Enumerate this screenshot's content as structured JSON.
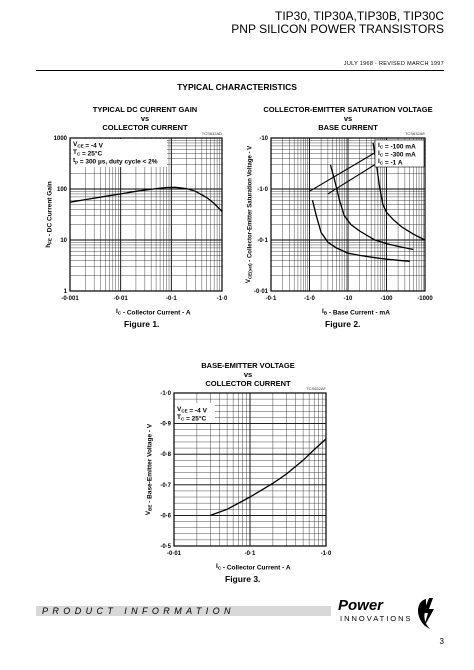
{
  "header": {
    "title_line1": "TIP30, TIP30A,TIP30B, TIP30C",
    "title_line2": "PNP SILICON POWER TRANSISTORS",
    "date": "JULY 1968 - REVISED MARCH 1997"
  },
  "section_title": "TYPICAL CHARACTERISTICS",
  "figures": [
    {
      "title_lines": [
        "TYPICAL DC CURRENT GAIN",
        "vs",
        "COLLECTOR CURRENT"
      ],
      "code": "TCS632AD",
      "caption": "Figure 1.",
      "ylabel": "hFE - DC Current Gain",
      "xlabel": "IC - Collector Current - A",
      "xticks": [
        "-0·001",
        "-0·01",
        "-0·1",
        "-1·0"
      ],
      "yticks": [
        "1",
        "10",
        "100",
        "1000"
      ],
      "conditions": [
        "VCE = -4 V",
        "TC = 25°C",
        "tp = 300 µs, duty cycle < 2%"
      ]
    },
    {
      "title_lines": [
        "COLLECTOR-EMITTER SATURATION VOLTAGE",
        "vs",
        "BASE CURRENT"
      ],
      "code": "TCS632AE",
      "caption": "Figure 2.",
      "ylabel": "VCE(sat) - Collector-Emitter Saturation Voltage - V",
      "xlabel": "IB - Base Current - mA",
      "xticks": [
        "-0·1",
        "-1·0",
        "-10",
        "-100",
        "-1000"
      ],
      "yticks": [
        "-0·01",
        "-0·1",
        "-1·0",
        "-10"
      ],
      "conditions": [
        "IC = -100 mA",
        "IC = -300 mA",
        "IC = -1 A"
      ]
    },
    {
      "title_lines": [
        "BASE-EMITTER VOLTAGE",
        "vs",
        "COLLECTOR CURRENT"
      ],
      "code": "TCS632AF",
      "caption": "Figure 3.",
      "ylabel": "VBE - Base-Emitter Voltage - V",
      "xlabel": "IC - Collector Current - A",
      "xticks": [
        "-0·01",
        "-0·1",
        "-1·0"
      ],
      "yticks": [
        "-0·5",
        "-0·6",
        "-0·7",
        "-0·8",
        "-0·9",
        "-1·0"
      ],
      "conditions": [
        "VCE = -4 V",
        "TC = 25°C"
      ]
    }
  ],
  "chart_data": [
    {
      "type": "line",
      "title": "TYPICAL DC CURRENT GAIN vs COLLECTOR CURRENT",
      "xlabel": "IC - Collector Current - A",
      "ylabel": "hFE - DC Current Gain",
      "xscale": "log",
      "yscale": "log",
      "xlim": [
        0.001,
        1.0
      ],
      "ylim": [
        1,
        1000
      ],
      "grid": true,
      "series": [
        {
          "x": [
            0.001,
            0.002,
            0.005,
            0.01,
            0.02,
            0.05,
            0.08,
            0.12,
            0.2,
            0.3,
            0.5,
            0.7,
            1.0
          ],
          "y": [
            55,
            62,
            72,
            80,
            90,
            102,
            107,
            108,
            102,
            90,
            68,
            52,
            36
          ]
        }
      ]
    },
    {
      "type": "line",
      "title": "COLLECTOR-EMITTER SATURATION VOLTAGE vs BASE CURRENT",
      "xlabel": "IB - Base Current - mA",
      "ylabel": "VCE(sat) - Collector-Emitter Saturation Voltage - V",
      "xscale": "log",
      "yscale": "log",
      "xlim": [
        0.1,
        1000
      ],
      "ylim": [
        0.01,
        10
      ],
      "grid": true,
      "series": [
        {
          "name": "IC = -100 mA",
          "x": [
            1.2,
            1.5,
            2,
            3,
            5,
            10,
            20,
            50,
            100,
            200,
            400
          ],
          "y": [
            0.6,
            0.3,
            0.14,
            0.09,
            0.07,
            0.055,
            0.05,
            0.045,
            0.042,
            0.04,
            0.038
          ]
        },
        {
          "name": "IC = -300 mA",
          "x": [
            3.5,
            4.5,
            6,
            8,
            12,
            20,
            50,
            100,
            200,
            500
          ],
          "y": [
            3.0,
            1.5,
            0.6,
            0.3,
            0.2,
            0.15,
            0.1,
            0.085,
            0.075,
            0.065
          ]
        },
        {
          "name": "IC = -1 A",
          "x": [
            45,
            55,
            65,
            80,
            100,
            150,
            250,
            500,
            1000
          ],
          "y": [
            8,
            3,
            1.2,
            0.5,
            0.35,
            0.25,
            0.18,
            0.13,
            0.1
          ]
        }
      ],
      "ref_lines": [
        {
          "x": [
            1,
            100
          ],
          "y": [
            0.9,
            7
          ]
        },
        {
          "x": [
            3,
            300
          ],
          "y": [
            0.8,
            7
          ]
        }
      ]
    },
    {
      "type": "line",
      "title": "BASE-EMITTER VOLTAGE vs COLLECTOR CURRENT",
      "xlabel": "IC - Collector Current - A",
      "ylabel": "VBE - Base-Emitter Voltage - V",
      "xscale": "log",
      "yscale": "linear",
      "xlim": [
        0.01,
        1.0
      ],
      "ylim": [
        -0.5,
        -1.0
      ],
      "grid": true,
      "series": [
        {
          "x": [
            0.03,
            0.05,
            0.1,
            0.2,
            0.3,
            0.5,
            0.7,
            1.0
          ],
          "y": [
            -0.6,
            -0.62,
            -0.66,
            -0.705,
            -0.735,
            -0.78,
            -0.815,
            -0.85
          ]
        }
      ]
    }
  ]
}
